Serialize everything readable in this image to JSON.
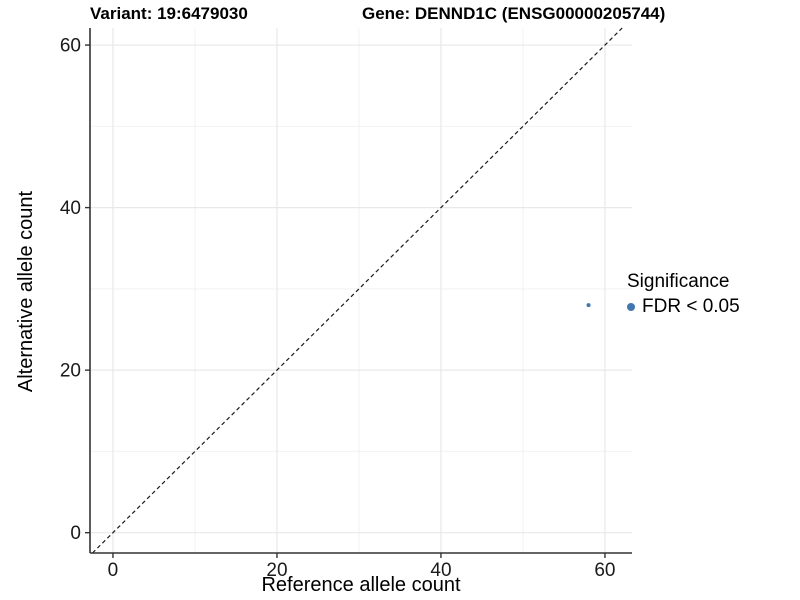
{
  "header": {
    "variant_title": "Variant: 19:6479030",
    "gene_title": "Gene: DENND1C (ENSG00000205744)"
  },
  "chart_data": {
    "type": "scatter",
    "title": "Variant: 19:6479030  Gene: DENND1C (ENSG00000205744)",
    "xlabel": "Reference allele count",
    "ylabel": "Alternative allele count",
    "xlim": [
      -2.8,
      63.3
    ],
    "ylim": [
      -2.5,
      62.1
    ],
    "xticks": [
      0,
      20,
      40,
      60
    ],
    "yticks": [
      0,
      20,
      40,
      60
    ],
    "minor_xticks": [
      10,
      30,
      50
    ],
    "minor_yticks": [
      10,
      30,
      50
    ],
    "grid": "on",
    "series": [
      {
        "name": "FDR < 0.05",
        "color": "#4176AE",
        "points": [
          {
            "x": 58,
            "y": 28
          }
        ],
        "point_radius_px": 2
      }
    ],
    "identity_line": {
      "slope": 1,
      "intercept": 0,
      "style": "dashed",
      "color": "#1a1a1a"
    },
    "legend": {
      "title": "Significance",
      "position": "right",
      "entries": [
        {
          "label": "FDR < 0.05",
          "color": "#4176AE"
        }
      ]
    }
  },
  "style_colors": {
    "grid_major": "#E8E8E8",
    "grid_minor": "#F2F2F2",
    "axis_line": "#333333",
    "tick_text": "#1a1a1a",
    "point_blue": "#4176AE"
  }
}
